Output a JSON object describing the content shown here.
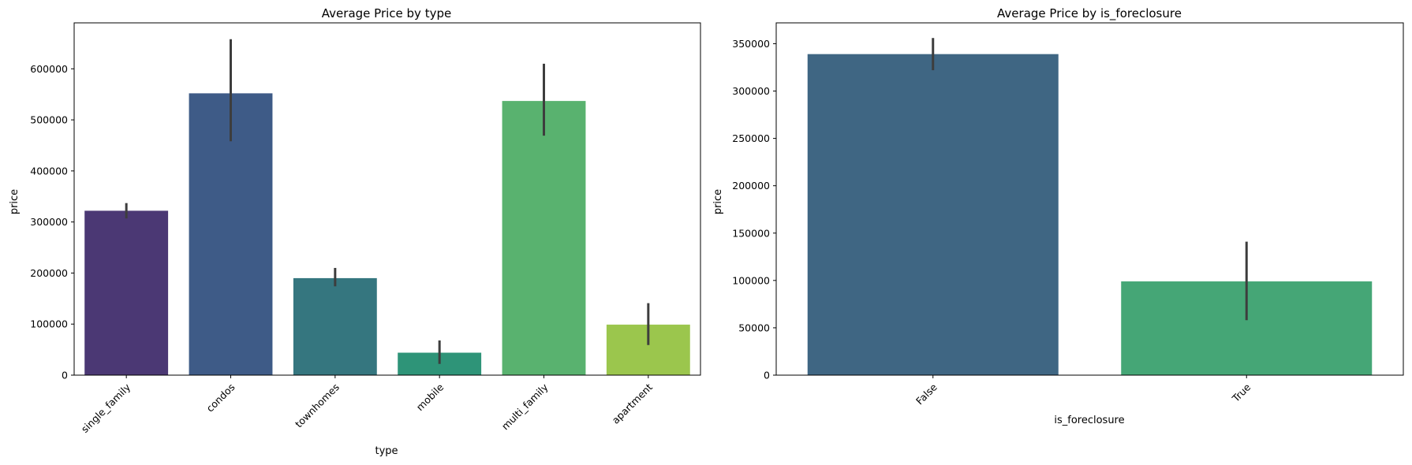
{
  "chart_data": [
    {
      "type": "bar",
      "title": "Average Price by type",
      "xlabel": "type",
      "ylabel": "price",
      "categories": [
        "single_family",
        "condos",
        "townhomes",
        "mobile",
        "multi_family",
        "apartment"
      ],
      "values": [
        322000,
        552000,
        190000,
        44000,
        537000,
        99000
      ],
      "error_low": [
        307000,
        458000,
        174000,
        22000,
        469000,
        59000
      ],
      "error_high": [
        337000,
        658000,
        210000,
        68000,
        610000,
        141000
      ],
      "colors": [
        "#4b3874",
        "#3e5b87",
        "#35767f",
        "#2e9478",
        "#59b26f",
        "#9bc64d"
      ],
      "ylim": [
        0,
        690000
      ],
      "yticks": [
        0,
        100000,
        200000,
        300000,
        400000,
        500000,
        600000
      ],
      "ytick_labels": [
        "0",
        "100000",
        "200000",
        "300000",
        "400000",
        "500000",
        "600000"
      ],
      "xtick_rotation": -45,
      "grid": false
    },
    {
      "type": "bar",
      "title": "Average Price by is_foreclosure",
      "xlabel": "is_foreclosure",
      "ylabel": "price",
      "categories": [
        "False",
        "True"
      ],
      "values": [
        339000,
        99000
      ],
      "error_low": [
        322000,
        58000
      ],
      "error_high": [
        356000,
        141000
      ],
      "colors": [
        "#3f6683",
        "#45a676"
      ],
      "ylim": [
        0,
        372000
      ],
      "yticks": [
        0,
        50000,
        100000,
        150000,
        200000,
        250000,
        300000,
        350000
      ],
      "ytick_labels": [
        "0",
        "50000",
        "100000",
        "150000",
        "200000",
        "250000",
        "300000",
        "350000"
      ],
      "xtick_rotation": -45,
      "grid": false
    }
  ]
}
